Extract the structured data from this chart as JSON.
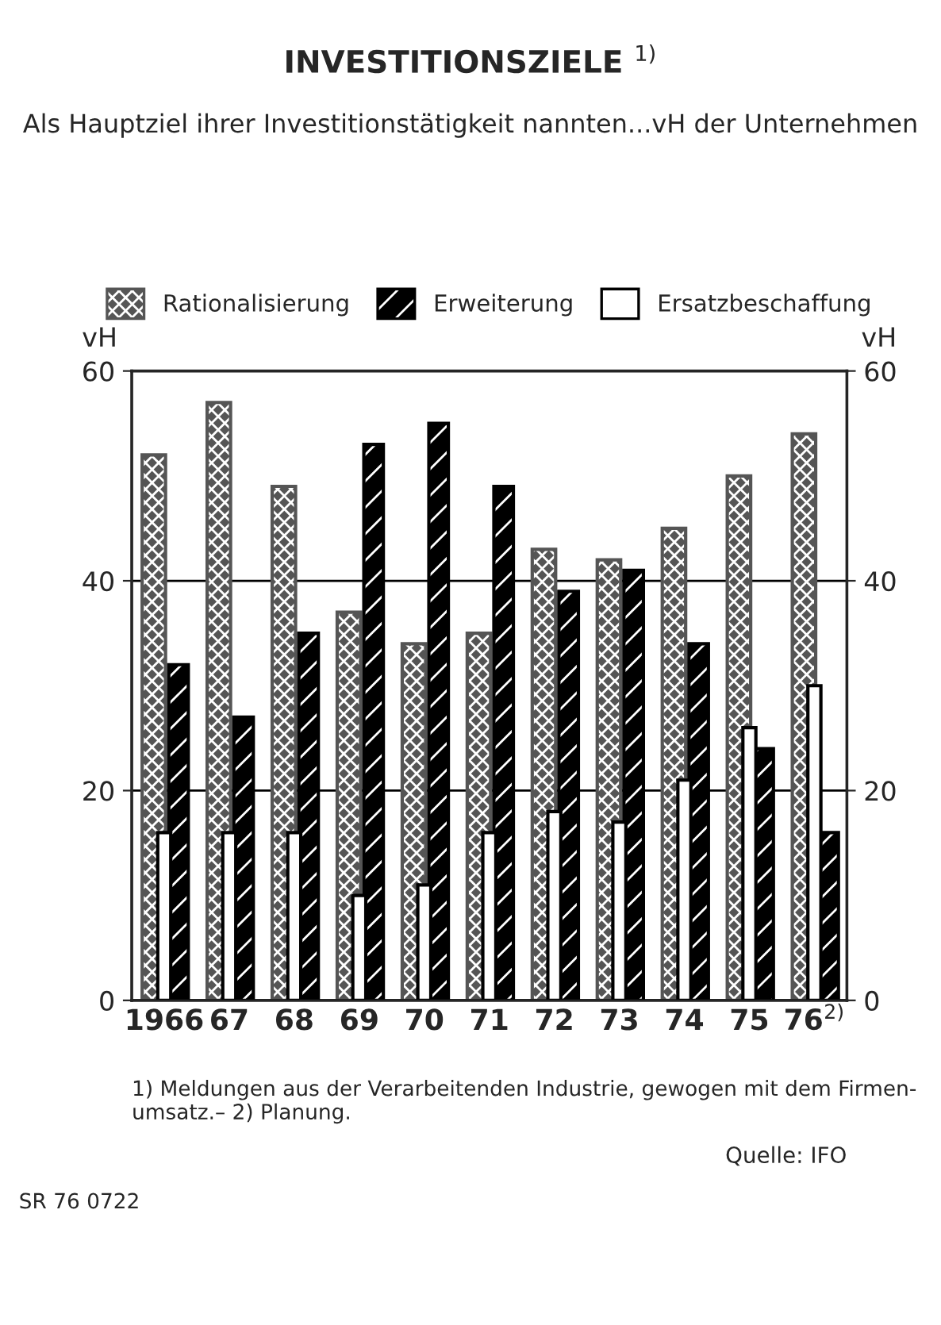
{
  "chart_data": {
    "type": "bar",
    "title": "INVESTITIONSZIELE $^{1)}$",
    "subtitle": "Als Hauptziel ihrer Investitionstätigkeit nannten...vH der Unternehmen",
    "ylabel": "vH",
    "y2label": "vH",
    "categories": [
      "1966",
      "67",
      "68",
      "69",
      "70",
      "71",
      "72",
      "73",
      "74",
      "75",
      "76$^{2)}$"
    ],
    "series": [
      {
        "name": "Rationalisierung",
        "color": "#555555",
        "values": [
          52,
          57,
          49,
          37,
          34,
          35,
          43,
          42,
          45,
          50,
          54
        ]
      },
      {
        "name": "Erweiterung",
        "color": "#000000",
        "values": [
          32,
          27,
          35,
          53,
          55,
          49,
          39,
          41,
          34,
          24,
          16
        ]
      },
      {
        "name": "Ersatzbeschaffung",
        "color": "#ffffff",
        "values": [
          16,
          16,
          16,
          10,
          11,
          16,
          18,
          17,
          21,
          26,
          30
        ]
      }
    ],
    "ylim": [
      0,
      60
    ],
    "yticks": [
      0,
      20,
      40,
      60
    ],
    "y2lim": [
      0,
      60
    ],
    "y2ticks": [
      0,
      20,
      40,
      60
    ],
    "grid": "y",
    "legend": "top",
    "annotations": [
      "1) Meldungen aus der Verarbeitenden Industrie, gewogen mit dem Firmen-\numsatz.– 2) Planung.",
      "Quelle: IFO",
      "SR 76 0722"
    ]
  }
}
